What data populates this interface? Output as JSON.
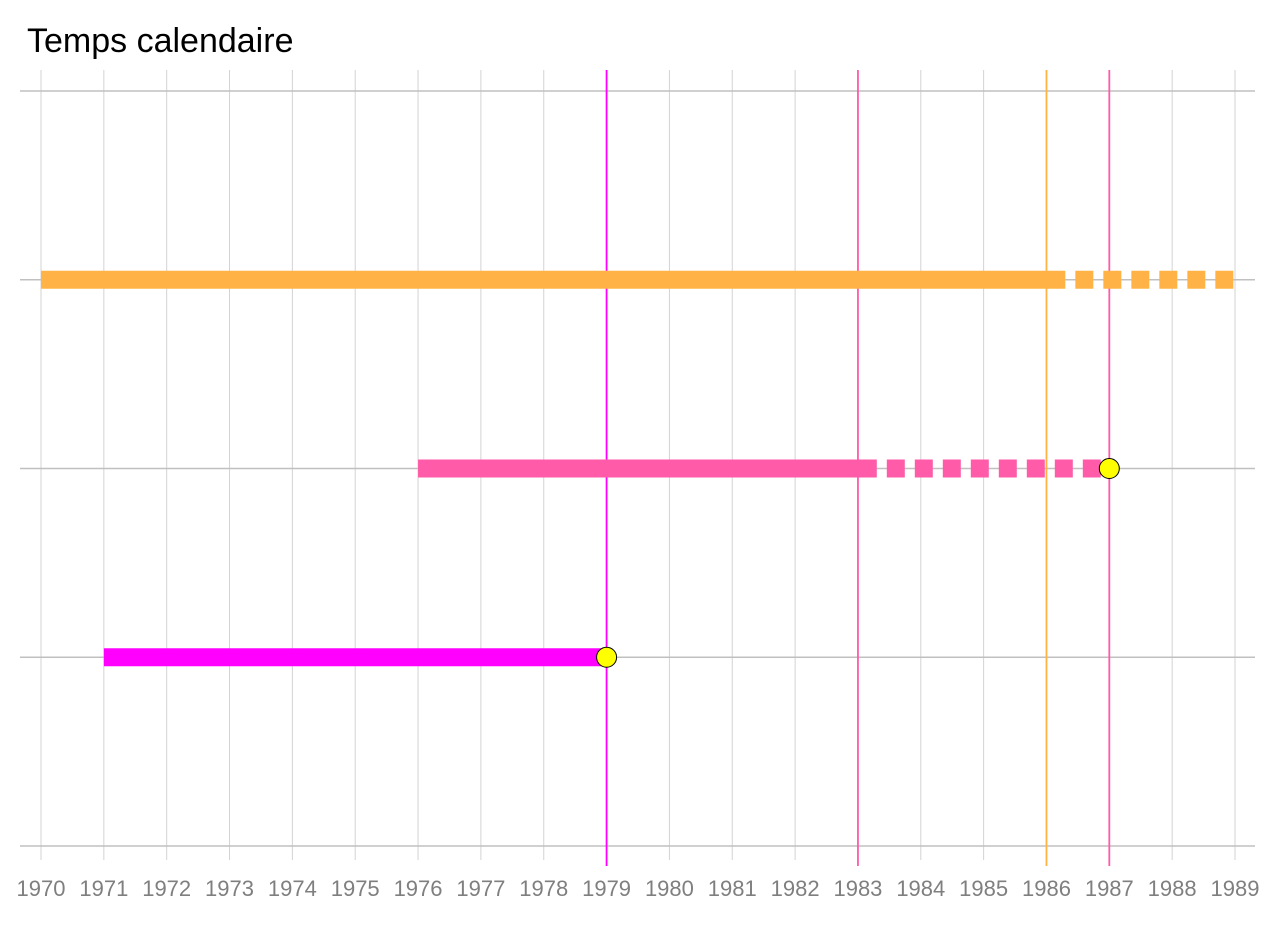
{
  "chart_data": {
    "type": "timeline",
    "title": "Temps calendaire",
    "xlim": [
      1970,
      1989
    ],
    "x_ticks": [
      1970,
      1971,
      1972,
      1973,
      1974,
      1975,
      1976,
      1977,
      1978,
      1979,
      1980,
      1981,
      1982,
      1983,
      1984,
      1985,
      1986,
      1987,
      1988,
      1989
    ],
    "rows": 4,
    "grid": true,
    "series": [
      {
        "row": 2,
        "color": "#FFB347",
        "solid": [
          1970,
          1986.3
        ],
        "dashed": [
          1986.3,
          1989
        ],
        "event_marker": null
      },
      {
        "row": 1,
        "color": "#FF5BA8",
        "solid": [
          1976,
          1983.3
        ],
        "dashed": [
          1983.3,
          1987
        ],
        "event_marker": 1987
      },
      {
        "row": 0,
        "color": "#FF00FF",
        "solid": [
          1971,
          1979
        ],
        "dashed": null,
        "event_marker": 1979
      }
    ],
    "vertical_lines": [
      {
        "x": 1979,
        "color": "#FF00FF"
      },
      {
        "x": 1983,
        "color": "#FF5BA8"
      },
      {
        "x": 1986,
        "color": "#FFB347"
      },
      {
        "x": 1987,
        "color": "#FF5BA8"
      }
    ],
    "marker_color": "#FFFF00"
  }
}
